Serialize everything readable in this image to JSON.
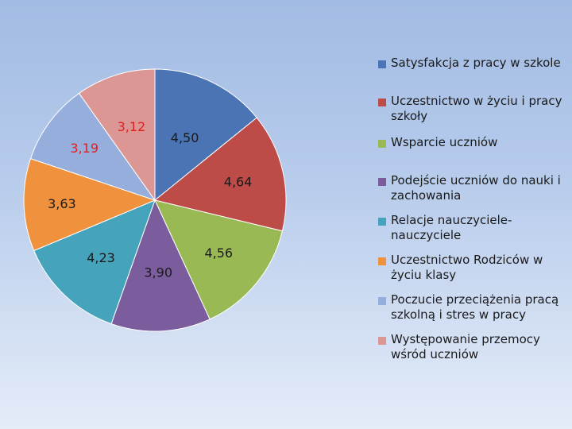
{
  "chart_data": {
    "type": "pie",
    "title": "",
    "categories": [
      "Satysfakcja z pracy w szkole",
      "Uczestnictwo w życiu i pracy szkoły",
      "Wsparcie uczniów",
      "Podejście uczniów do nauki i zachowania",
      "Relacje nauczyciele-nauczyciele",
      "Uczestnictwo Rodziców w życiu klasy",
      "Poczucie przeciążenia pracą szkolną i stres w pracy",
      "Występowanie przemocy wśród uczniów"
    ],
    "values": [
      4.5,
      4.64,
      4.56,
      3.9,
      4.23,
      3.63,
      3.19,
      3.12
    ],
    "value_labels": [
      "4,50",
      "4,64",
      "4,56",
      "3,90",
      "4,23",
      "3,63",
      "3,19",
      "3,12"
    ],
    "colors": [
      "#4a74b4",
      "#bd4b48",
      "#98b954",
      "#7b5c9d",
      "#45a3bb",
      "#f0913d",
      "#95aedb",
      "#dc9794"
    ],
    "label_colors": [
      "#1a1a1a",
      "#1a1a1a",
      "#1a1a1a",
      "#1a1a1a",
      "#1a1a1a",
      "#1a1a1a",
      "#e02020",
      "#e02020"
    ],
    "legend_position": "right",
    "legend_lines": [
      [
        "Satysfakcja z pracy w szkole"
      ],
      [
        "Uczestnictwo w życiu i pracy",
        "szkoły"
      ],
      [
        "Wsparcie uczniów"
      ],
      [
        "Podejście uczniów do nauki i",
        "zachowania"
      ],
      [
        "Relacje nauczyciele-",
        "nauczyciele"
      ],
      [
        "Uczestnictwo Rodziców w",
        "życiu klasy"
      ],
      [
        "Poczucie przeciążenia pracą",
        "szkolną i stres w pracy"
      ],
      [
        "Występowanie przemocy",
        "wśród uczniów"
      ]
    ]
  }
}
